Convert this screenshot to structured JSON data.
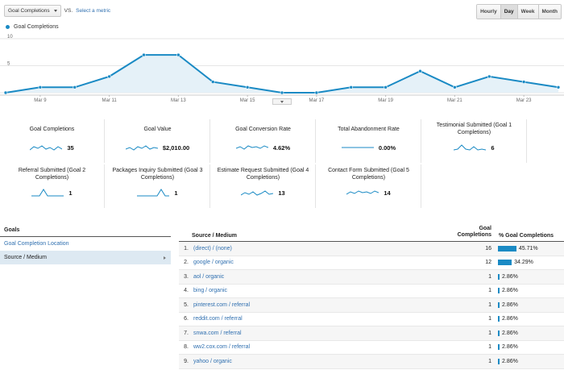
{
  "toolbar": {
    "metric": "Goal Completions",
    "vs": "VS.",
    "select_metric": "Select a metric"
  },
  "time_toggle": [
    "Hourly",
    "Day",
    "Week",
    "Month"
  ],
  "active_time": "Day",
  "legend": {
    "label": "Goal Completions",
    "color": "#1a8ac4"
  },
  "chart_data": {
    "type": "area",
    "x": [
      "Mar 8",
      "Mar 9",
      "Mar 10",
      "Mar 11",
      "Mar 12",
      "Mar 13",
      "Mar 14",
      "Mar 15",
      "Mar 16",
      "Mar 17",
      "Mar 18",
      "Mar 19",
      "Mar 20",
      "Mar 21",
      "Mar 22",
      "Mar 23",
      "Mar 24"
    ],
    "series": [
      {
        "values": [
          0,
          1,
          1,
          3,
          7,
          7,
          2,
          1,
          0,
          0,
          1,
          1,
          4,
          1,
          3,
          2,
          1
        ]
      }
    ],
    "xticks": [
      "Mar 9",
      "Mar 11",
      "Mar 13",
      "Mar 15",
      "Mar 17",
      "Mar 19",
      "Mar 21",
      "Mar 23"
    ],
    "yticks": [
      "10",
      "5"
    ],
    "ylim": [
      0,
      10
    ]
  },
  "metrics": [
    {
      "label": "Goal Completions",
      "value": "35"
    },
    {
      "label": "Goal Value",
      "value": "$2,010.00"
    },
    {
      "label": "Goal Conversion Rate",
      "value": "4.62%"
    },
    {
      "label": "Total Abandonment Rate",
      "value": "0.00%"
    },
    {
      "label": "Testimonial Submitted (Goal 1 Completions)",
      "value": "6"
    },
    {
      "label": "Referral Submitted (Goal 2 Completions)",
      "value": "1"
    },
    {
      "label": "Packages Inquiry Submitted (Goal 3 Completions)",
      "value": "1"
    },
    {
      "label": "Estimate Request Submitted (Goal 4 Completions)",
      "value": "13"
    },
    {
      "label": "Contact Form Submitted (Goal 5 Completions)",
      "value": "14"
    }
  ],
  "goals": {
    "heading": "Goals",
    "items": [
      "Goal Completion Location",
      "Source / Medium"
    ]
  },
  "table": {
    "col_source": "Source / Medium",
    "col_gc": "Goal Completions",
    "col_pct": "% Goal Completions",
    "rows": [
      {
        "idx": "1.",
        "source": "(direct) / (none)",
        "gc": "16",
        "pct": "45.71%",
        "frac": 0.4571
      },
      {
        "idx": "2.",
        "source": "google / organic",
        "gc": "12",
        "pct": "34.29%",
        "frac": 0.3429
      },
      {
        "idx": "3.",
        "source": "aol / organic",
        "gc": "1",
        "pct": "2.86%",
        "frac": 0.0286
      },
      {
        "idx": "4.",
        "source": "bing / organic",
        "gc": "1",
        "pct": "2.86%",
        "frac": 0.0286
      },
      {
        "idx": "5.",
        "source": "pinterest.com / referral",
        "gc": "1",
        "pct": "2.86%",
        "frac": 0.0286
      },
      {
        "idx": "6.",
        "source": "reddit.com / referral",
        "gc": "1",
        "pct": "2.86%",
        "frac": 0.0286
      },
      {
        "idx": "7.",
        "source": "snwa.com / referral",
        "gc": "1",
        "pct": "2.86%",
        "frac": 0.0286
      },
      {
        "idx": "8.",
        "source": "ww2.cox.com / referral",
        "gc": "1",
        "pct": "2.86%",
        "frac": 0.0286
      },
      {
        "idx": "9.",
        "source": "yahoo / organic",
        "gc": "1",
        "pct": "2.86%",
        "frac": 0.0286
      }
    ]
  }
}
